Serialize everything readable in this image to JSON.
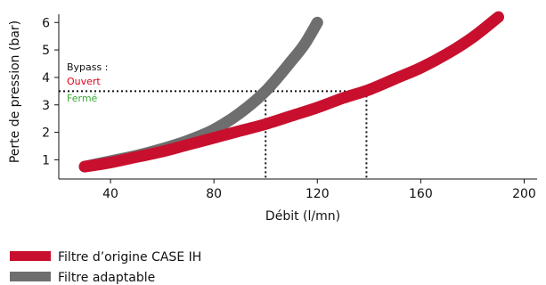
{
  "chart_data": {
    "type": "line",
    "xlabel": "Débit (l/mn)",
    "ylabel": "Perte de pression (bar)",
    "xlim": [
      20,
      205
    ],
    "ylim": [
      0.3,
      6.3
    ],
    "x_ticks": [
      40,
      80,
      120,
      160,
      200
    ],
    "y_ticks": [
      1,
      2,
      3,
      4,
      5,
      6
    ],
    "grid": false,
    "legend_position": "bottom-left",
    "series": [
      {
        "name": "Filtre d’origine CASE IH",
        "color": "#c8102e",
        "points": [
          [
            30,
            0.75
          ],
          [
            40,
            0.9
          ],
          [
            50,
            1.1
          ],
          [
            60,
            1.3
          ],
          [
            70,
            1.55
          ],
          [
            80,
            1.8
          ],
          [
            90,
            2.05
          ],
          [
            100,
            2.3
          ],
          [
            110,
            2.6
          ],
          [
            120,
            2.9
          ],
          [
            130,
            3.25
          ],
          [
            140,
            3.55
          ],
          [
            150,
            3.95
          ],
          [
            160,
            4.35
          ],
          [
            170,
            4.85
          ],
          [
            180,
            5.45
          ],
          [
            190,
            6.2
          ]
        ]
      },
      {
        "name": "Filtre adaptable",
        "color": "#6e6e6e",
        "points": [
          [
            30,
            0.75
          ],
          [
            40,
            0.95
          ],
          [
            50,
            1.15
          ],
          [
            60,
            1.4
          ],
          [
            70,
            1.7
          ],
          [
            80,
            2.1
          ],
          [
            90,
            2.7
          ],
          [
            100,
            3.5
          ],
          [
            110,
            4.6
          ],
          [
            115,
            5.2
          ],
          [
            120,
            6.0
          ]
        ]
      }
    ],
    "bypass_threshold": 3.5,
    "bypass_markers_x": [
      100,
      139
    ],
    "annotations": {
      "title": "Bypass :",
      "open": "Ouvert",
      "closed": "Fermé",
      "open_color": "#e2001a",
      "closed_color": "#3aaa35"
    }
  }
}
